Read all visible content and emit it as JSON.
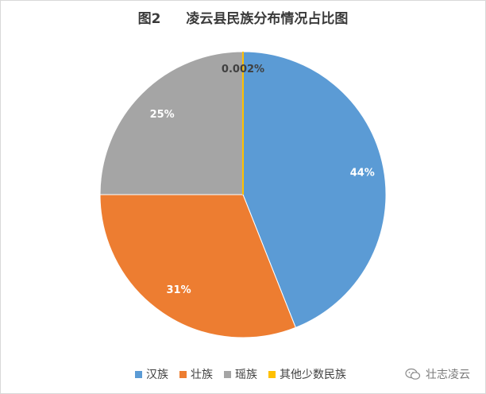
{
  "chart_data": {
    "type": "pie",
    "title_prefix": "图2",
    "title": "凌云县民族分布情况占比图",
    "categories": [
      "汉族",
      "壮族",
      "瑶族",
      "其他少数民族"
    ],
    "values": [
      43.998,
      31,
      25,
      0.002
    ],
    "data_labels": [
      "44%",
      "31%",
      "25%",
      "0.002%"
    ],
    "colors": [
      "#5b9bd5",
      "#ed7d31",
      "#a5a5a5",
      "#ffc000"
    ],
    "legend_position": "bottom"
  },
  "watermark": {
    "text": "壮志凌云",
    "icon": "wechat-icon"
  }
}
